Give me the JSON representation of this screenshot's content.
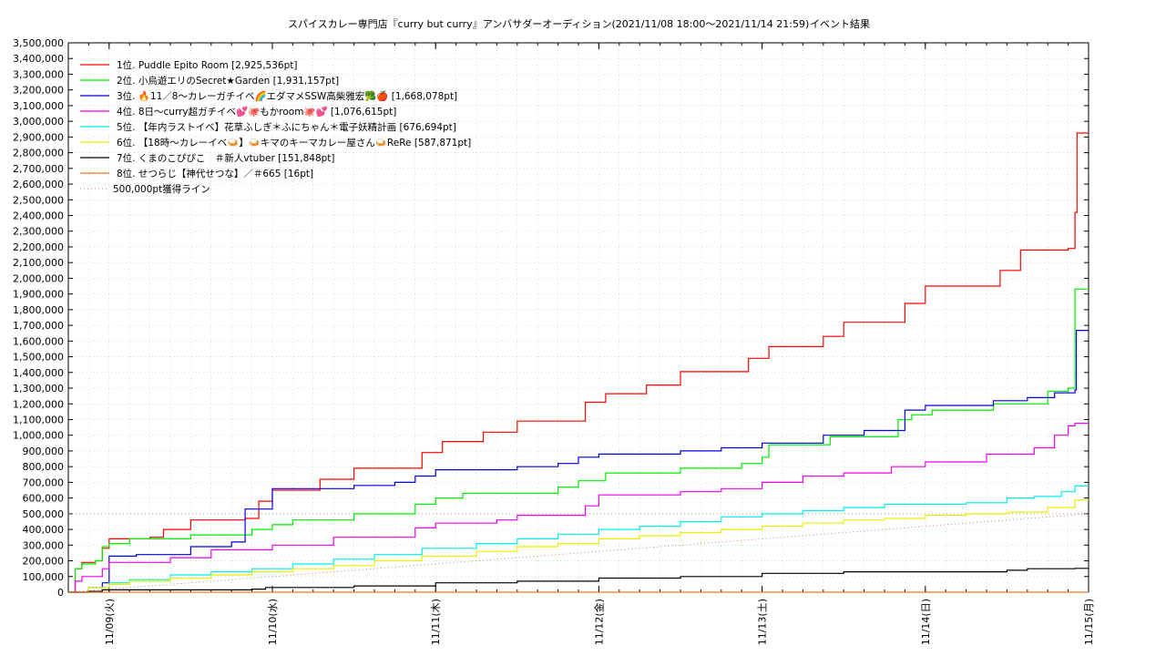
{
  "chart_data": {
    "type": "line",
    "title": "スパイスカレー専門店『curry but curry』アンバサダーオーディション(2021/11/08 18:00～2021/11/14 21:59)",
    "subtitle": "イベント結果",
    "x_tick_labels": [
      "11/09(火)",
      "11/10(水)",
      "11/11(木)",
      "11/12(金)",
      "11/13(土)",
      "11/14(日)",
      "11/15(月)"
    ],
    "xlim_hours": [
      0,
      150
    ],
    "ylim": [
      0,
      3500000
    ],
    "y_step": 100000,
    "y_tick_labels": [
      "0",
      "100,000",
      "200,000",
      "300,000",
      "400,000",
      "500,000",
      "600,000",
      "700,000",
      "800,000",
      "900,000",
      "1,000,000",
      "1,100,000",
      "1,200,000",
      "1,300,000",
      "1,400,000",
      "1,500,000",
      "1,600,000",
      "1,700,000",
      "1,800,000",
      "1,900,000",
      "2,000,000",
      "2,100,000",
      "2,200,000",
      "2,300,000",
      "2,400,000",
      "2,500,000",
      "2,600,000",
      "2,700,000",
      "2,800,000",
      "2,900,000",
      "3,000,000",
      "3,100,000",
      "3,200,000",
      "3,300,000",
      "3,400,000",
      "3,500,000"
    ],
    "grid": true,
    "legend_position": "top-left",
    "reference_line": {
      "name": "500,000pt獲得ライン",
      "value": 500000,
      "color": "#c08080"
    },
    "series": [
      {
        "name": "1位. Puddle Epito Room [2,925,536pt]",
        "color": "#ff0000",
        "points": [
          [
            0,
            0
          ],
          [
            1,
            150000
          ],
          [
            2,
            190000
          ],
          [
            4,
            200000
          ],
          [
            5,
            280000
          ],
          [
            6,
            340000
          ],
          [
            12,
            350000
          ],
          [
            14,
            400000
          ],
          [
            18,
            460000
          ],
          [
            26,
            470000
          ],
          [
            28,
            580000
          ],
          [
            30,
            650000
          ],
          [
            37,
            720000
          ],
          [
            42,
            790000
          ],
          [
            52,
            890000
          ],
          [
            55,
            960000
          ],
          [
            61,
            1020000
          ],
          [
            66,
            1090000
          ],
          [
            76,
            1210000
          ],
          [
            79,
            1265000
          ],
          [
            85,
            1320000
          ],
          [
            90,
            1405000
          ],
          [
            100,
            1490000
          ],
          [
            103,
            1565000
          ],
          [
            111,
            1630000
          ],
          [
            114,
            1720000
          ],
          [
            123,
            1840000
          ],
          [
            126,
            1950000
          ],
          [
            137,
            2050000
          ],
          [
            140,
            2180000
          ],
          [
            147,
            2190000
          ],
          [
            148,
            2420000
          ],
          [
            148.3,
            2925536
          ],
          [
            150,
            2925536
          ]
        ]
      },
      {
        "name": "2位. 小烏遊エリのSecret★Garden [1,931,157pt]",
        "color": "#00ee00",
        "points": [
          [
            0,
            0
          ],
          [
            1,
            150000
          ],
          [
            2,
            180000
          ],
          [
            4,
            200000
          ],
          [
            5,
            290000
          ],
          [
            6,
            310000
          ],
          [
            9,
            340000
          ],
          [
            18,
            365000
          ],
          [
            27,
            400000
          ],
          [
            30,
            430000
          ],
          [
            33,
            460000
          ],
          [
            42,
            500000
          ],
          [
            51,
            560000
          ],
          [
            54,
            600000
          ],
          [
            58,
            630000
          ],
          [
            72,
            670000
          ],
          [
            75,
            710000
          ],
          [
            79,
            760000
          ],
          [
            90,
            790000
          ],
          [
            99,
            820000
          ],
          [
            102,
            860000
          ],
          [
            103,
            940000
          ],
          [
            112,
            990000
          ],
          [
            122,
            1100000
          ],
          [
            124,
            1130000
          ],
          [
            127,
            1160000
          ],
          [
            136,
            1200000
          ],
          [
            144,
            1280000
          ],
          [
            147,
            1300000
          ],
          [
            148,
            1931157
          ],
          [
            150,
            1931157
          ]
        ]
      },
      {
        "name": "3位. 🔥11／8〜カレーガチイベ🌈エダマメSSW高柴雅宏🥦🍎 [1,668,078pt]",
        "color": "#0000dd",
        "points": [
          [
            0,
            0
          ],
          [
            3,
            30000
          ],
          [
            5,
            60000
          ],
          [
            6,
            230000
          ],
          [
            10,
            240000
          ],
          [
            18,
            290000
          ],
          [
            24,
            320000
          ],
          [
            26,
            530000
          ],
          [
            30,
            660000
          ],
          [
            42,
            680000
          ],
          [
            48,
            700000
          ],
          [
            51,
            740000
          ],
          [
            54,
            780000
          ],
          [
            66,
            800000
          ],
          [
            72,
            820000
          ],
          [
            75,
            860000
          ],
          [
            78,
            880000
          ],
          [
            90,
            900000
          ],
          [
            96,
            920000
          ],
          [
            102,
            950000
          ],
          [
            111,
            1000000
          ],
          [
            117,
            1030000
          ],
          [
            123,
            1160000
          ],
          [
            126,
            1190000
          ],
          [
            136,
            1220000
          ],
          [
            141,
            1240000
          ],
          [
            145,
            1270000
          ],
          [
            148,
            1290000
          ],
          [
            148.2,
            1668078
          ],
          [
            150,
            1668078
          ]
        ]
      },
      {
        "name": "4位. 8日〜curry超ガチイベ💕🐙もかroom🐙💕 [1,076,615pt]",
        "color": "#ee00ee",
        "points": [
          [
            0,
            0
          ],
          [
            1,
            70000
          ],
          [
            2,
            100000
          ],
          [
            5,
            150000
          ],
          [
            6,
            190000
          ],
          [
            15,
            220000
          ],
          [
            21,
            270000
          ],
          [
            30,
            300000
          ],
          [
            39,
            350000
          ],
          [
            51,
            410000
          ],
          [
            54,
            440000
          ],
          [
            63,
            460000
          ],
          [
            66,
            490000
          ],
          [
            76,
            550000
          ],
          [
            78,
            620000
          ],
          [
            90,
            640000
          ],
          [
            96,
            660000
          ],
          [
            102,
            700000
          ],
          [
            108,
            740000
          ],
          [
            114,
            760000
          ],
          [
            121,
            800000
          ],
          [
            126,
            830000
          ],
          [
            135,
            880000
          ],
          [
            142,
            920000
          ],
          [
            145,
            1000000
          ],
          [
            147,
            1060000
          ],
          [
            148,
            1076615
          ],
          [
            150,
            1076615
          ]
        ]
      },
      {
        "name": "5位. 【年内ラストイベ】花草ふしぎ＊ふにちゃん＊電子妖精計画 [676,694pt]",
        "color": "#00eeee",
        "points": [
          [
            0,
            0
          ],
          [
            3,
            30000
          ],
          [
            6,
            60000
          ],
          [
            9,
            80000
          ],
          [
            15,
            110000
          ],
          [
            21,
            130000
          ],
          [
            27,
            150000
          ],
          [
            33,
            180000
          ],
          [
            39,
            210000
          ],
          [
            45,
            240000
          ],
          [
            52,
            280000
          ],
          [
            60,
            310000
          ],
          [
            66,
            340000
          ],
          [
            72,
            370000
          ],
          [
            78,
            400000
          ],
          [
            84,
            420000
          ],
          [
            90,
            450000
          ],
          [
            96,
            480000
          ],
          [
            102,
            500000
          ],
          [
            108,
            520000
          ],
          [
            114,
            540000
          ],
          [
            120,
            560000
          ],
          [
            126,
            560000
          ],
          [
            132,
            570000
          ],
          [
            138,
            600000
          ],
          [
            142,
            610000
          ],
          [
            146,
            640000
          ],
          [
            148,
            676694
          ],
          [
            150,
            676694
          ]
        ]
      },
      {
        "name": "6位. 【18時〜カレーイベ🍛】🍛キマのキーマカレー屋さん🍛ReRe [587,871pt]",
        "color": "#eeee00",
        "points": [
          [
            0,
            0
          ],
          [
            3,
            30000
          ],
          [
            6,
            50000
          ],
          [
            9,
            70000
          ],
          [
            15,
            90000
          ],
          [
            21,
            110000
          ],
          [
            27,
            130000
          ],
          [
            33,
            150000
          ],
          [
            39,
            170000
          ],
          [
            45,
            200000
          ],
          [
            52,
            230000
          ],
          [
            60,
            260000
          ],
          [
            66,
            290000
          ],
          [
            72,
            310000
          ],
          [
            78,
            340000
          ],
          [
            84,
            360000
          ],
          [
            90,
            380000
          ],
          [
            96,
            400000
          ],
          [
            102,
            420000
          ],
          [
            108,
            440000
          ],
          [
            114,
            460000
          ],
          [
            120,
            470000
          ],
          [
            126,
            490000
          ],
          [
            132,
            500000
          ],
          [
            138,
            510000
          ],
          [
            144,
            540000
          ],
          [
            148,
            587871
          ],
          [
            150,
            587871
          ]
        ]
      },
      {
        "name": "7位. くまのこぴぴこ　＃新人vtuber [151,848pt]",
        "color": "#000000",
        "points": [
          [
            0,
            0
          ],
          [
            3,
            5000
          ],
          [
            5,
            15000
          ],
          [
            27,
            20000
          ],
          [
            29,
            30000
          ],
          [
            42,
            40000
          ],
          [
            54,
            60000
          ],
          [
            66,
            70000
          ],
          [
            78,
            90000
          ],
          [
            90,
            100000
          ],
          [
            102,
            120000
          ],
          [
            114,
            130000
          ],
          [
            138,
            140000
          ],
          [
            141,
            150000
          ],
          [
            148,
            151848
          ],
          [
            150,
            151848
          ]
        ]
      },
      {
        "name": "8位. せつらじ【神代せつな】／＃665 [16pt]",
        "color": "#ee7722",
        "points": [
          [
            0,
            0
          ],
          [
            150,
            16
          ]
        ]
      }
    ]
  }
}
